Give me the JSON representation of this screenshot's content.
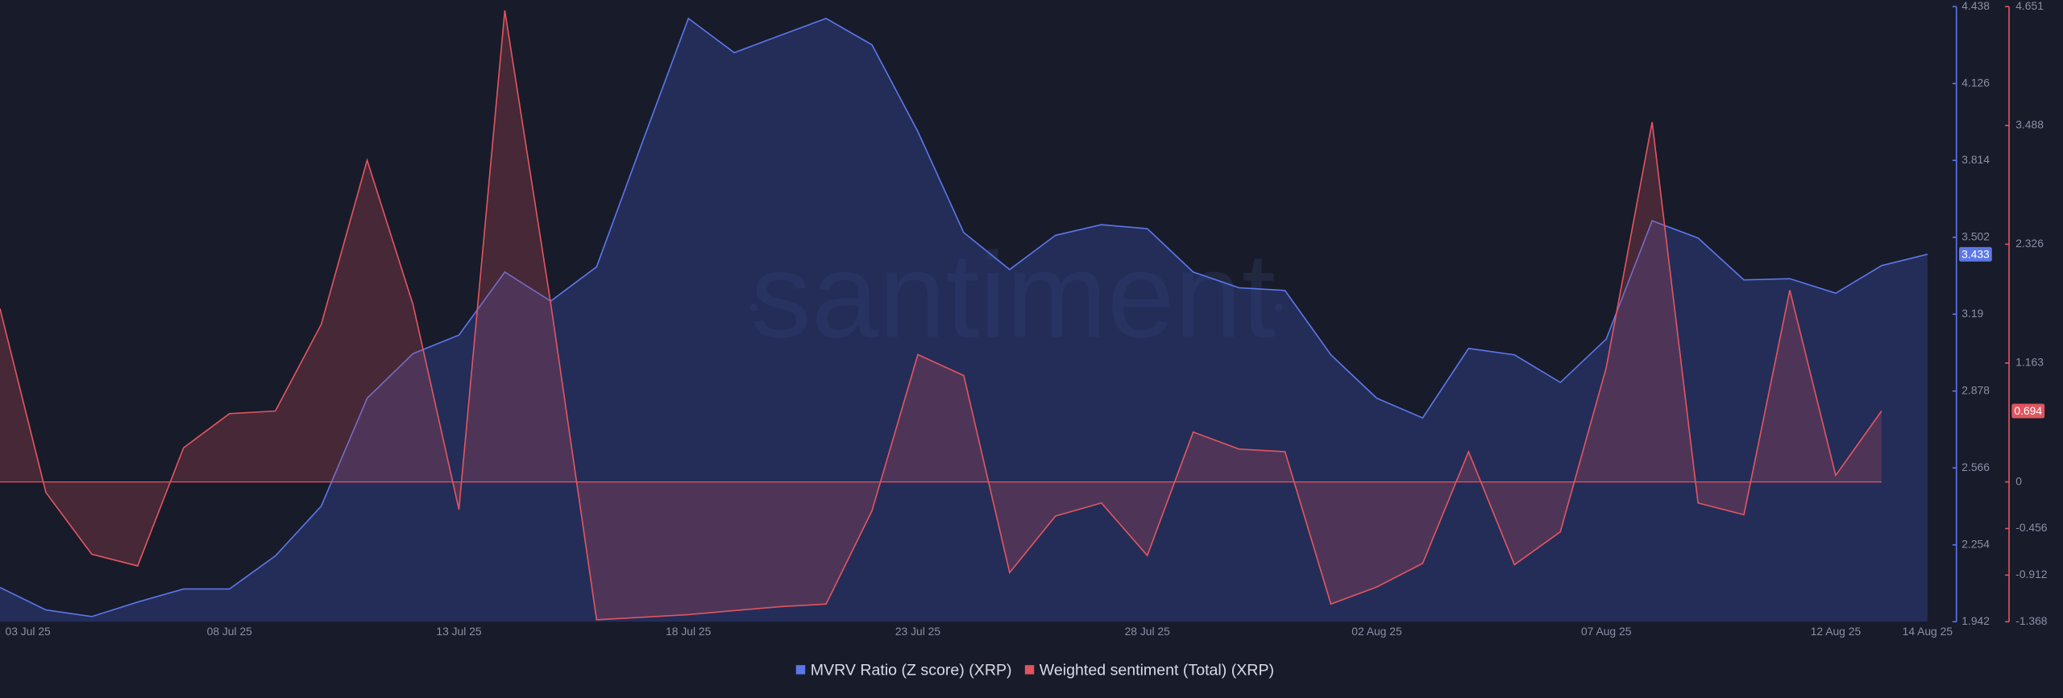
{
  "chart_data": {
    "type": "line",
    "watermark": "santiment",
    "categories": [
      "03 Jul 25",
      null,
      null,
      null,
      null,
      "08 Jul 25",
      null,
      null,
      null,
      null,
      "13 Jul 25",
      null,
      null,
      null,
      null,
      "18 Jul 25",
      null,
      null,
      null,
      null,
      "23 Jul 25",
      null,
      null,
      null,
      null,
      "28 Jul 25",
      null,
      null,
      null,
      null,
      "02 Aug 25",
      null,
      null,
      null,
      null,
      "07 Aug 25",
      null,
      null,
      null,
      null,
      "12 Aug 25",
      null,
      "14 Aug 25"
    ],
    "series": [
      {
        "name": "MVRV Ratio (Z score) (XRP)",
        "color": "#5b76e8",
        "values": [
          2.081,
          1.99,
          1.963,
          2.022,
          2.075,
          2.075,
          2.209,
          2.411,
          2.849,
          3.03,
          3.105,
          3.361,
          3.243,
          3.382,
          3.889,
          4.39,
          4.251,
          4.321,
          4.39,
          4.283,
          3.931,
          3.521,
          3.371,
          3.51,
          3.553,
          3.537,
          3.361,
          3.297,
          3.286,
          3.025,
          2.849,
          2.769,
          3.051,
          3.025,
          2.913,
          3.089,
          3.569,
          3.499,
          3.329,
          3.334,
          3.275,
          3.387,
          3.433
        ]
      },
      {
        "name": "Weighted sentiment (Total) (XRP)",
        "color": "#e0555f",
        "axis": "y2",
        "values": [
          1.696,
          -0.103,
          -0.707,
          -0.822,
          0.334,
          0.668,
          0.694,
          1.542,
          3.148,
          1.735,
          -0.27,
          4.613,
          1.748,
          -1.349,
          -1.324,
          -1.298,
          -1.259,
          -1.221,
          -1.195,
          -0.283,
          1.246,
          1.041,
          -0.887,
          -0.334,
          -0.206,
          -0.72,
          0.488,
          0.321,
          0.296,
          -1.195,
          -1.028,
          -0.797,
          0.296,
          -0.81,
          -0.488,
          1.118,
          3.521,
          -0.206,
          -0.321,
          1.876,
          0.064,
          0.694,
          null
        ]
      }
    ],
    "ylim": [
      1.942,
      4.438
    ],
    "yticks": [
      1.942,
      2.254,
      2.566,
      2.878,
      3.19,
      3.502,
      3.814,
      4.126,
      4.438
    ],
    "y2lim": [
      -1.368,
      4.651
    ],
    "y2ticks": [
      -1.368,
      -0.912,
      -0.456,
      0,
      1.163,
      2.326,
      3.488,
      4.651
    ]
  }
}
